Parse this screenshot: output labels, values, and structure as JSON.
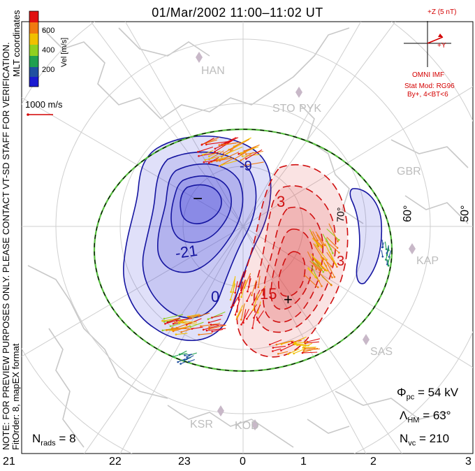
{
  "title": "01/Mar/2002 11:00–11:02 UT",
  "side_notes": {
    "preview": "NOTE: FOR PREVIEW PURPOSES ONLY. PLEASE CONTACT VT-SD STAFF FOR VERIFICATION.",
    "fit": "FitOrder: 8, mapEX format",
    "coords": "MLT coordinates"
  },
  "colorbar": {
    "label": "Vel [m/s]",
    "ticks": [
      "600",
      "400",
      "200"
    ],
    "colors": [
      "#e01010",
      "#f07a10",
      "#f0c000",
      "#90d020",
      "#20a050",
      "#2050a0",
      "#1a1ad0"
    ]
  },
  "velocity_scale": {
    "label": "1000 m/s",
    "color": "#d40000"
  },
  "imf": {
    "z_label": "+Z (5 nT)",
    "y_label": "+Y",
    "source": "OMNI IMF",
    "model_line1": "Stat Mod: RG96",
    "model_line2": "By+, 4<BT<6",
    "color": "#d40000"
  },
  "stats": {
    "phi_pc": {
      "symbol": "Φ",
      "sub": "pc",
      "value": "= 54 kV"
    },
    "lambda_hm": {
      "symbol": "Λ",
      "sub": "HM",
      "value": "= 63°"
    },
    "n_vc": {
      "symbol": "N",
      "sub": "vc",
      "value": "= 210"
    },
    "n_rads": {
      "symbol": "N",
      "sub": "rads",
      "value": "= 8"
    }
  },
  "mlt_labels": [
    "21",
    "22",
    "23",
    "0",
    "1",
    "2",
    "3"
  ],
  "latitude_labels": [
    "70°",
    "60°",
    "50°"
  ],
  "stations": [
    "HAN",
    "STO",
    "PYK",
    "GBR",
    "KAP",
    "SAS",
    "KSR",
    "KOD"
  ],
  "contour_labels": {
    "negative": [
      "-9",
      "-21",
      "0"
    ],
    "positive": [
      "3",
      "15",
      "3"
    ],
    "min_marker": "−",
    "max_marker": "+"
  },
  "colors": {
    "negative_fill": "#3c3cd8",
    "positive_fill": "#e04040",
    "boundary_green": "#58c040",
    "coast": "#c8c8c8",
    "grid": "#cfcfcf"
  }
}
